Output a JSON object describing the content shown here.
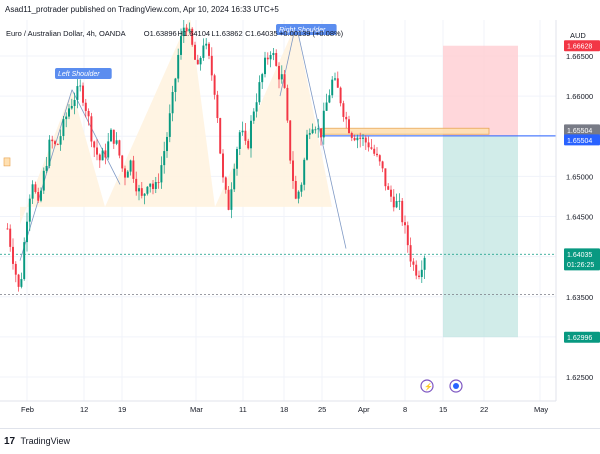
{
  "header": {
    "published": "Asad11_protrader published on TradingView.com, Apr 10, 2024 16:33 UTC+5"
  },
  "legend": {
    "symbol": "Euro / Australian Dollar, 4h, OANDA",
    "open_label": "O",
    "open": "1.63896",
    "high_label": "H",
    "high": "1.64104",
    "low_label": "L",
    "low": "1.63862",
    "close_label": "C",
    "close": "1.64035",
    "change": "+0.00139 (+0.08%)"
  },
  "footer": {
    "brand": "TradingView"
  },
  "colors": {
    "up": "#089981",
    "down": "#f23645",
    "pattern_fill": "#fff3e0",
    "target_fill": "#b2dfdb",
    "stop_fill": "#ffcdd2",
    "entry_line": "#2962ff",
    "label_bg": "#5b8def"
  },
  "chart_data": {
    "type": "candlestick",
    "currency": "AUD",
    "ylim": [
      1.62,
      1.67
    ],
    "y_ticks": [
      "1.62500",
      "1.63000",
      "1.63500",
      "1.64000",
      "1.64500",
      "1.65000",
      "1.65500",
      "1.66000",
      "1.66500"
    ],
    "x_ticks": [
      "Feb",
      "12",
      "19",
      "Mar",
      "11",
      "18",
      "25",
      "Apr",
      "8",
      "15",
      "22",
      "May"
    ],
    "price_tags": [
      {
        "value": "1.66628",
        "price": 1.66628,
        "kind": "stop"
      },
      {
        "value": "1.65504",
        "price": 1.65504,
        "kind": "entry-gray"
      },
      {
        "value": "1.65504",
        "price": 1.65504,
        "kind": "entry"
      },
      {
        "value": "1.64035",
        "price": 1.64035,
        "kind": "last",
        "countdown": "01:26:25"
      },
      {
        "value": "1.62996",
        "price": 1.62996,
        "kind": "target"
      }
    ],
    "annotations": [
      {
        "label": "Left Shoulder"
      },
      {
        "label": "Right Shoulder"
      }
    ],
    "position": {
      "side": "short",
      "entry": 1.65504,
      "stop": 1.66628,
      "target": 1.62996,
      "start": "Apr 11",
      "end": "Apr 29"
    },
    "neckline": 1.6462,
    "support_dotted": 1.6353,
    "last_price_level": 1.6403,
    "waypoints": [
      1.6435,
      1.6395,
      1.6352,
      1.644,
      1.65,
      1.646,
      1.6505,
      1.6545,
      1.6535,
      1.656,
      1.6585,
      1.66,
      1.661,
      1.658,
      1.654,
      1.652,
      1.653,
      1.6555,
      1.6535,
      1.65,
      1.652,
      1.649,
      1.647,
      1.65,
      1.648,
      1.651,
      1.655,
      1.66,
      1.666,
      1.6695,
      1.6665,
      1.663,
      1.667,
      1.664,
      1.66,
      1.65,
      1.646,
      1.652,
      1.656,
      1.653,
      1.658,
      1.661,
      1.664,
      1.666,
      1.663,
      1.662,
      1.653,
      1.647,
      1.6495,
      1.656,
      1.657,
      1.655,
      1.659,
      1.662,
      1.6605,
      1.6575,
      1.6555,
      1.655,
      1.6545,
      1.654,
      1.6525,
      1.651,
      1.648,
      1.647,
      1.646,
      1.6425,
      1.639,
      1.638,
      1.6403
    ]
  }
}
